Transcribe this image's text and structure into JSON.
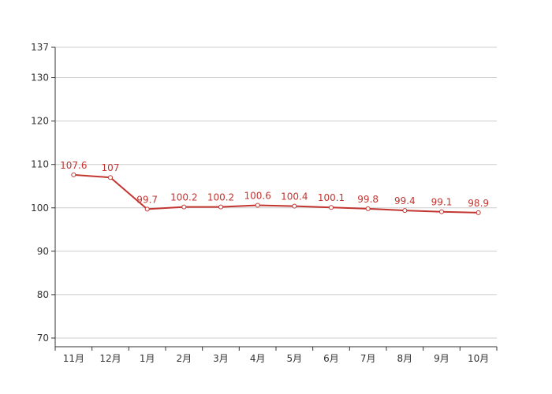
{
  "chart_data": {
    "type": "line",
    "categories": [
      "11月",
      "12月",
      "1月",
      "2月",
      "3月",
      "4月",
      "5月",
      "6月",
      "7月",
      "8月",
      "9月",
      "10月"
    ],
    "series": [
      {
        "values": [
          107.6,
          107,
          99.7,
          100.2,
          100.2,
          100.6,
          100.4,
          100.1,
          99.8,
          99.4,
          99.1,
          98.9
        ]
      }
    ],
    "y_ticks": [
      70,
      80,
      90,
      100,
      110,
      120,
      130,
      137
    ],
    "ylim": [
      68,
      137
    ],
    "grid": true,
    "legend": "none"
  },
  "colors": {
    "series_line": "#c23531",
    "grid": "#cccccc",
    "axis": "#333333",
    "point_fill": "#ffffff"
  }
}
